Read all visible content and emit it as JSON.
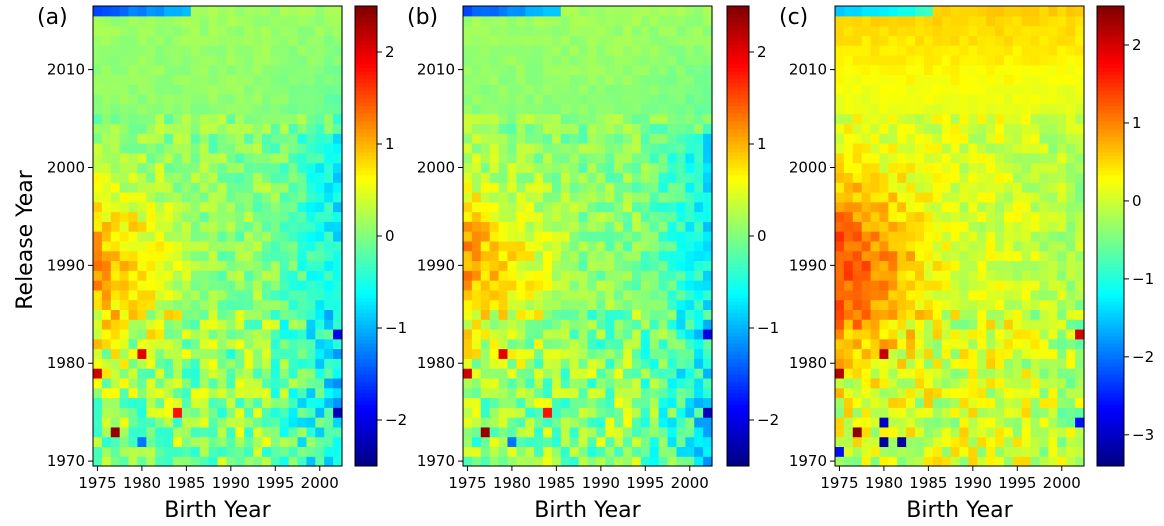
{
  "figure": {
    "colormap": "jet",
    "shared_ylabel": "Release Year"
  },
  "chart_data": [
    {
      "panel": "(a)",
      "type": "heatmap",
      "xlabel": "Birth Year",
      "ylabel": "Release Year",
      "x_range": [
        1975,
        2002
      ],
      "y_range": [
        1970,
        2016
      ],
      "x_ticks": [
        1975,
        1980,
        1985,
        1990,
        1995,
        2000
      ],
      "y_ticks": [
        1970,
        1980,
        1990,
        2000,
        2010
      ],
      "colorbar": {
        "vmin": -2.5,
        "vmax": 2.5,
        "ticks": [
          -2,
          -1,
          0,
          1,
          2
        ]
      },
      "pattern": {
        "peak_value": 1.0,
        "peak_birth": 1978,
        "peak_release": 1990,
        "recent_release_value": 0.15,
        "late_birth_value": -0.7,
        "noise": 0.3
      },
      "hotspots": [
        {
          "birth": 1975,
          "release": 1979,
          "value": 2.1
        },
        {
          "birth": 1980,
          "release": 1981,
          "value": 2.0
        },
        {
          "birth": 1977,
          "release": 1973,
          "value": 2.4
        },
        {
          "birth": 1984,
          "release": 1975,
          "value": 1.8
        },
        {
          "birth": 2002,
          "release": 1975,
          "value": -2.2
        },
        {
          "birth": 2002,
          "release": 1983,
          "value": -2.0
        },
        {
          "birth": 1980,
          "release": 1972,
          "value": -1.3
        }
      ]
    },
    {
      "panel": "(b)",
      "type": "heatmap",
      "xlabel": "Birth Year",
      "ylabel": "",
      "x_range": [
        1975,
        2002
      ],
      "y_range": [
        1970,
        2016
      ],
      "x_ticks": [
        1975,
        1980,
        1985,
        1990,
        1995,
        2000
      ],
      "y_ticks": [
        1970,
        1980,
        1990,
        2000,
        2010
      ],
      "colorbar": {
        "vmin": -2.5,
        "vmax": 2.5,
        "ticks": [
          -2,
          -1,
          0,
          1,
          2
        ]
      },
      "pattern": {
        "peak_value": 1.0,
        "peak_birth": 1978,
        "peak_release": 1990,
        "recent_release_value": 0.15,
        "late_birth_value": -0.7,
        "noise": 0.3
      },
      "hotspots": [
        {
          "birth": 1975,
          "release": 1979,
          "value": 2.1
        },
        {
          "birth": 1979,
          "release": 1981,
          "value": 2.0
        },
        {
          "birth": 1977,
          "release": 1973,
          "value": 2.4
        },
        {
          "birth": 1984,
          "release": 1975,
          "value": 1.8
        },
        {
          "birth": 2002,
          "release": 1975,
          "value": -2.2
        },
        {
          "birth": 2002,
          "release": 1983,
          "value": -2.0
        },
        {
          "birth": 1980,
          "release": 1972,
          "value": -1.3
        }
      ]
    },
    {
      "panel": "(c)",
      "type": "heatmap",
      "xlabel": "Birth Year",
      "ylabel": "",
      "x_range": [
        1975,
        2002
      ],
      "y_range": [
        1970,
        2016
      ],
      "x_ticks": [
        1975,
        1980,
        1985,
        1990,
        1995,
        2000
      ],
      "y_ticks": [
        1970,
        1980,
        1990,
        2000,
        2010
      ],
      "colorbar": {
        "vmin": -3.4,
        "vmax": 2.5,
        "ticks": [
          -3,
          -2,
          -1,
          0,
          1,
          2
        ]
      },
      "pattern": {
        "peak_value": 1.3,
        "peak_birth": 1978,
        "peak_release": 1990,
        "recent_release_value": 0.55,
        "late_birth_value": -0.25,
        "noise": 0.3
      },
      "hotspots": [
        {
          "birth": 1975,
          "release": 1979,
          "value": 2.2
        },
        {
          "birth": 1980,
          "release": 1981,
          "value": 2.1
        },
        {
          "birth": 1977,
          "release": 1973,
          "value": 2.4
        },
        {
          "birth": 1980,
          "release": 1972,
          "value": -3.2
        },
        {
          "birth": 1982,
          "release": 1972,
          "value": -3.2
        },
        {
          "birth": 1980,
          "release": 1974,
          "value": -3.0
        },
        {
          "birth": 1975,
          "release": 1971,
          "value": -2.6
        },
        {
          "birth": 2002,
          "release": 1974,
          "value": -2.6
        },
        {
          "birth": 2002,
          "release": 1983,
          "value": 2.0
        }
      ]
    }
  ]
}
